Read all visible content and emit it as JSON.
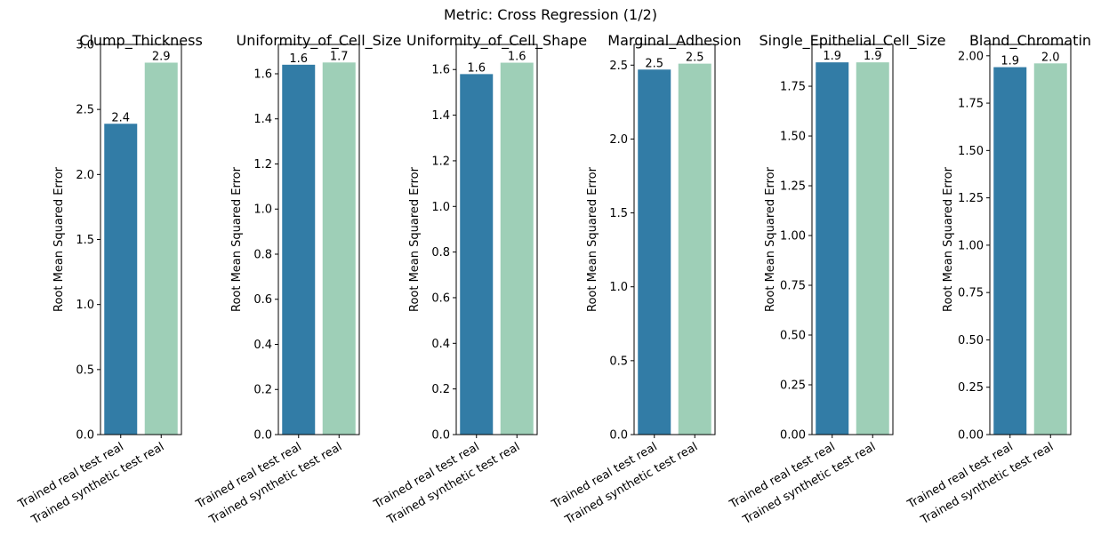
{
  "figure": {
    "title": "Metric: Cross Regression (1/2)"
  },
  "colors": {
    "real": "#327ca6",
    "synthetic": "#9ecfb7"
  },
  "chart_data": [
    {
      "type": "bar",
      "title": "Clump_Thickness",
      "ylabel": "Root Mean Squared Error",
      "categories": [
        "Trained real test real",
        "Trained synthetic test real"
      ],
      "values": [
        2.39,
        2.86
      ],
      "labels": [
        "2.4",
        "2.9"
      ],
      "ylim": [
        0,
        3.0
      ],
      "yticks": [
        0,
        0.5,
        1.0,
        1.5,
        2.0,
        2.5,
        3.0
      ],
      "ytick_labels": [
        "0.0",
        "0.5",
        "1.0",
        "1.5",
        "2.0",
        "2.5",
        "3.0"
      ]
    },
    {
      "type": "bar",
      "title": "Uniformity_of_Cell_Size",
      "ylabel": "Root Mean Squared Error",
      "categories": [
        "Trained real test real",
        "Trained synthetic test real"
      ],
      "values": [
        1.64,
        1.65
      ],
      "labels": [
        "1.6",
        "1.7"
      ],
      "ylim": [
        0,
        1.73
      ],
      "yticks": [
        0,
        0.2,
        0.4,
        0.6,
        0.8,
        1.0,
        1.2,
        1.4,
        1.6
      ],
      "ytick_labels": [
        "0.0",
        "0.2",
        "0.4",
        "0.6",
        "0.8",
        "1.0",
        "1.2",
        "1.4",
        "1.6"
      ]
    },
    {
      "type": "bar",
      "title": "Uniformity_of_Cell_Shape",
      "ylabel": "Root Mean Squared Error",
      "categories": [
        "Trained real test real",
        "Trained synthetic test real"
      ],
      "values": [
        1.58,
        1.63
      ],
      "labels": [
        "1.6",
        "1.6"
      ],
      "ylim": [
        0,
        1.71
      ],
      "yticks": [
        0,
        0.2,
        0.4,
        0.6,
        0.8,
        1.0,
        1.2,
        1.4,
        1.6
      ],
      "ytick_labels": [
        "0.0",
        "0.2",
        "0.4",
        "0.6",
        "0.8",
        "1.0",
        "1.2",
        "1.4",
        "1.6"
      ]
    },
    {
      "type": "bar",
      "title": "Marginal_Adhesion",
      "ylabel": "Root Mean Squared Error",
      "categories": [
        "Trained real test real",
        "Trained synthetic test real"
      ],
      "values": [
        2.47,
        2.51
      ],
      "labels": [
        "2.5",
        "2.5"
      ],
      "ylim": [
        0,
        2.64
      ],
      "yticks": [
        0,
        0.5,
        1.0,
        1.5,
        2.0,
        2.5
      ],
      "ytick_labels": [
        "0.0",
        "0.5",
        "1.0",
        "1.5",
        "2.0",
        "2.5"
      ]
    },
    {
      "type": "bar",
      "title": "Single_Epithelial_Cell_Size",
      "ylabel": "Root Mean Squared Error",
      "categories": [
        "Trained real test real",
        "Trained synthetic test real"
      ],
      "values": [
        1.87,
        1.87
      ],
      "labels": [
        "1.9",
        "1.9"
      ],
      "ylim": [
        0,
        1.96
      ],
      "yticks": [
        0,
        0.25,
        0.5,
        0.75,
        1.0,
        1.25,
        1.5,
        1.75
      ],
      "ytick_labels": [
        "0.00",
        "0.25",
        "0.50",
        "0.75",
        "1.00",
        "1.25",
        "1.50",
        "1.75"
      ]
    },
    {
      "type": "bar",
      "title": "Bland_Chromatin",
      "ylabel": "Root Mean Squared Error",
      "categories": [
        "Trained real test real",
        "Trained synthetic test real"
      ],
      "values": [
        1.94,
        1.96
      ],
      "labels": [
        "1.9",
        "2.0"
      ],
      "ylim": [
        0,
        2.06
      ],
      "yticks": [
        0,
        0.25,
        0.5,
        0.75,
        1.0,
        1.25,
        1.5,
        1.75,
        2.0
      ],
      "ytick_labels": [
        "0.00",
        "0.25",
        "0.50",
        "0.75",
        "1.00",
        "1.25",
        "1.50",
        "1.75",
        "2.00"
      ]
    }
  ]
}
